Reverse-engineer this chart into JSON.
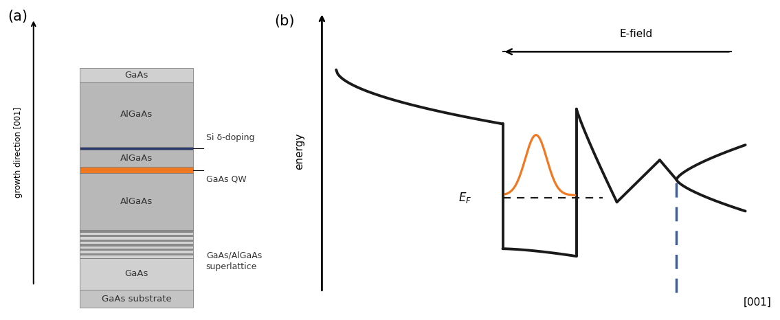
{
  "fig_width": 11.35,
  "fig_height": 4.66,
  "panel_a_label": "(a)",
  "panel_b_label": "(b)",
  "growth_direction_label": "growth direction [001]",
  "efield_label": "E-field",
  "energy_label": "energy",
  "x_axis_label": "[001]",
  "band_color": "#1a1a1a",
  "orange_color": "#f07820",
  "blue_dashed_color": "#3a5f9f",
  "algaas_color": "#b8b8b8",
  "gaas_color": "#d0d0d0",
  "substrate_color": "#c4c4c4",
  "delta_color": "#2a3a6e",
  "qw_color": "#f07820",
  "sl_light": "#d4d4d4",
  "sl_dark": "#8a8a8a",
  "border_color": "#808080"
}
